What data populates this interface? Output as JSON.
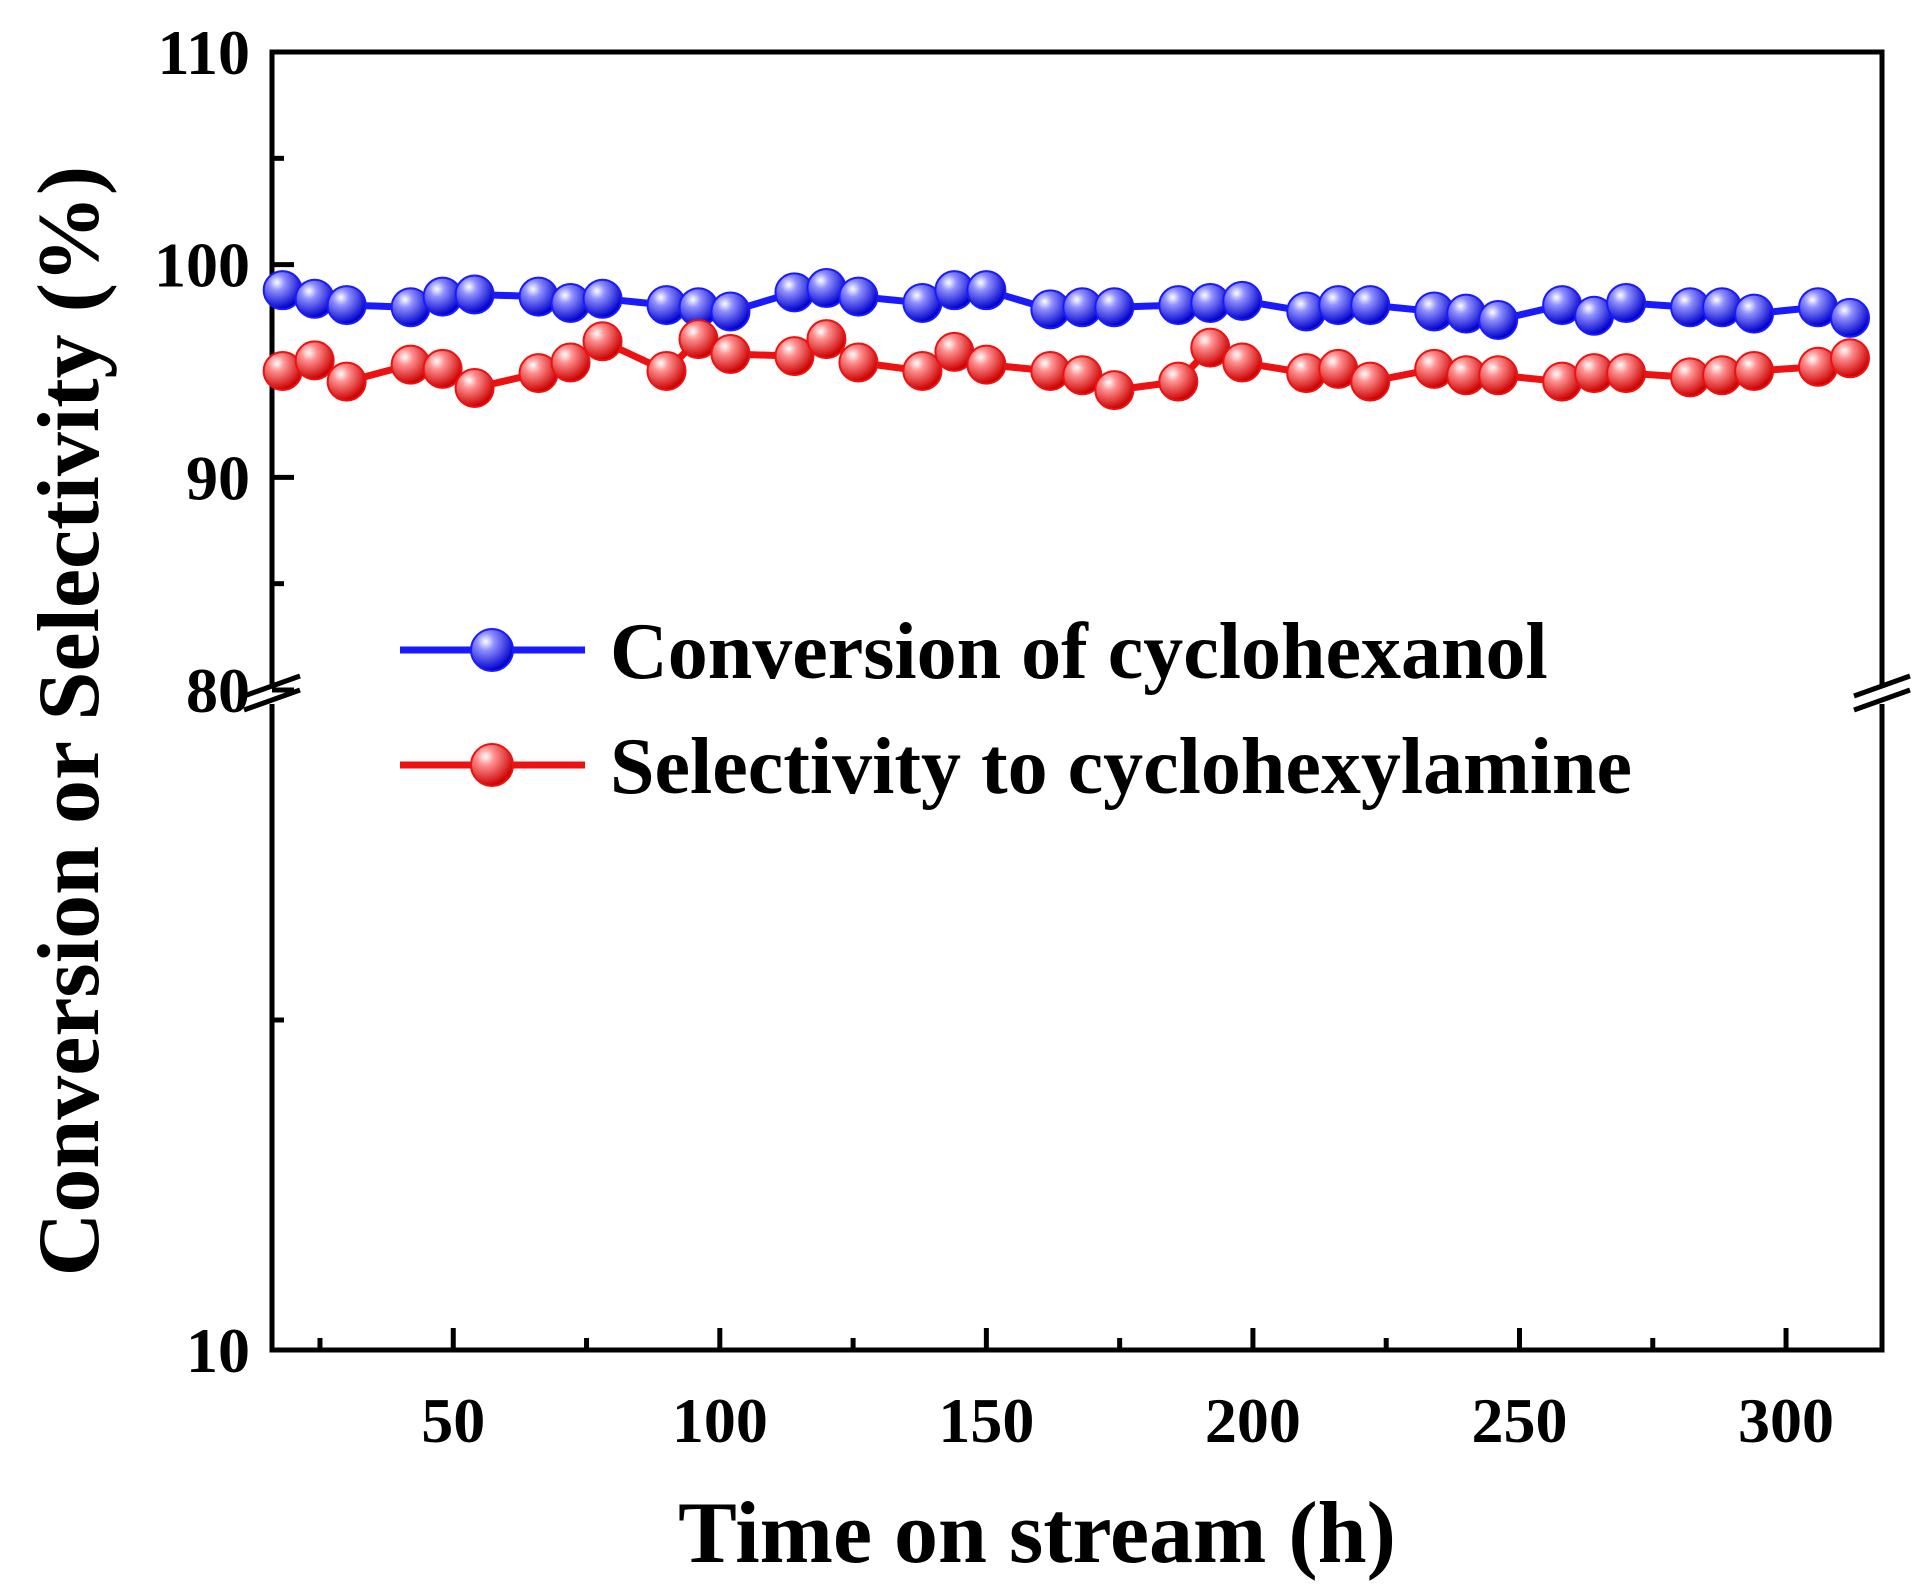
{
  "chart_data": {
    "type": "line",
    "title": "",
    "xlabel": "Time on stream (h)",
    "ylabel": "Conversion or Selectivity (%)",
    "xlim": [
      16,
      318
    ],
    "ylim": [
      10,
      110
    ],
    "y_break": [
      10,
      80
    ],
    "x_ticks": [
      50,
      100,
      150,
      200,
      250,
      300
    ],
    "x_tick_labels": [
      "50",
      "100",
      "150",
      "200",
      "250",
      "300"
    ],
    "y_ticks": [
      10,
      80,
      90,
      100,
      110
    ],
    "y_tick_labels": [
      "10",
      "80",
      "90",
      "100",
      "110"
    ],
    "legend_position": "center-left",
    "series": [
      {
        "name": "Conversion of cyclohexanol",
        "color": "#1a1aff",
        "x": [
          18,
          24,
          30,
          42,
          48,
          54,
          66,
          72,
          78,
          90,
          96,
          102,
          114,
          120,
          126,
          138,
          144,
          150,
          162,
          168,
          174,
          186,
          192,
          198,
          210,
          216,
          222,
          234,
          240,
          246,
          258,
          264,
          270,
          282,
          288,
          294,
          306,
          312
        ],
        "values": [
          98.8,
          98.4,
          98.1,
          98.0,
          98.5,
          98.6,
          98.5,
          98.2,
          98.4,
          98.1,
          98.0,
          97.8,
          98.7,
          98.9,
          98.5,
          98.2,
          98.8,
          98.8,
          97.9,
          98.0,
          98.0,
          98.1,
          98.2,
          98.3,
          97.8,
          98.1,
          98.1,
          97.8,
          97.7,
          97.4,
          98.1,
          97.6,
          98.2,
          98.0,
          98.0,
          97.7,
          98.0,
          97.5
        ]
      },
      {
        "name": "Selectivity to cyclohexylamine",
        "color": "#ee1111",
        "x": [
          18,
          24,
          30,
          42,
          48,
          54,
          66,
          72,
          78,
          90,
          96,
          102,
          114,
          120,
          126,
          138,
          144,
          150,
          162,
          168,
          174,
          186,
          192,
          198,
          210,
          216,
          222,
          234,
          240,
          246,
          258,
          264,
          270,
          282,
          288,
          294,
          306,
          312
        ],
        "values": [
          95.0,
          95.5,
          94.5,
          95.3,
          95.1,
          94.2,
          94.9,
          95.4,
          96.4,
          95.0,
          96.5,
          95.8,
          95.7,
          96.5,
          95.4,
          95.0,
          95.9,
          95.3,
          95.0,
          94.8,
          94.1,
          94.5,
          96.1,
          95.4,
          94.9,
          95.1,
          94.5,
          95.1,
          94.8,
          94.8,
          94.5,
          94.9,
          94.9,
          94.7,
          94.8,
          95.0,
          95.2,
          95.6
        ]
      }
    ]
  }
}
